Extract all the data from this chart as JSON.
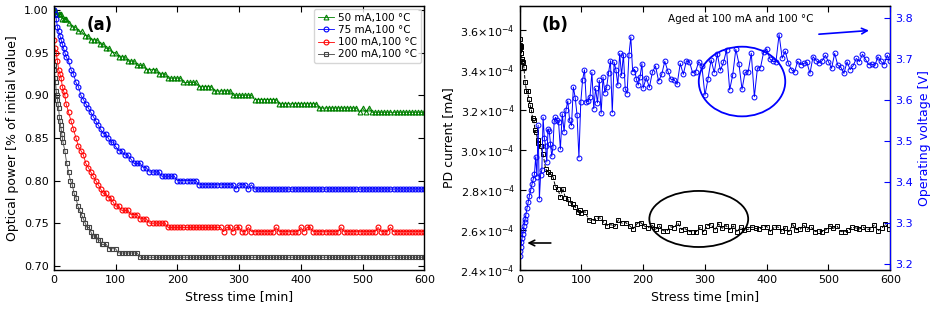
{
  "panel_a": {
    "title": "(a)",
    "xlabel": "Stress time [min]",
    "ylabel": "Optical power [% of initial value]",
    "xlim": [
      0,
      600
    ],
    "ylim": [
      0.695,
      1.005
    ],
    "yticks": [
      0.7,
      0.75,
      0.8,
      0.85,
      0.9,
      0.95,
      1.0
    ],
    "xticks": [
      0,
      100,
      200,
      300,
      400,
      500,
      600
    ],
    "series": [
      {
        "label": "50 mA,100 °C",
        "color": "green",
        "marker": "^",
        "y0": 1.0,
        "yf": 0.872,
        "tau": 200
      },
      {
        "label": "75 mA,100 °C",
        "color": "blue",
        "marker": "o",
        "y0": 1.0,
        "yf": 0.79,
        "tau": 70
      },
      {
        "label": "100 mA,100 °C",
        "color": "red",
        "marker": "o",
        "y0": 0.965,
        "yf": 0.742,
        "tau": 50
      },
      {
        "label": "200 mA,100 °C",
        "color": "#444444",
        "marker": "s",
        "y0": 0.935,
        "yf": 0.71,
        "tau": 30
      }
    ]
  },
  "panel_b": {
    "title": "(b)",
    "xlabel": "Stress time [min]",
    "ylabel_left": "PD current [mA]",
    "ylabel_right": "Operating voltage [V]",
    "xlim": [
      0,
      600
    ],
    "ylim_left": [
      0.00024,
      0.000372
    ],
    "ylim_right": [
      3.185,
      3.83
    ],
    "yticks_left": [
      0.00024,
      0.00026,
      0.00028,
      0.0003,
      0.00032,
      0.00034,
      0.00036
    ],
    "yticks_right": [
      3.2,
      3.3,
      3.4,
      3.5,
      3.6,
      3.7,
      3.8
    ],
    "xticks": [
      0,
      100,
      200,
      300,
      400,
      500,
      600
    ],
    "annotation": "Aged at 100 mA and 100 °C"
  }
}
